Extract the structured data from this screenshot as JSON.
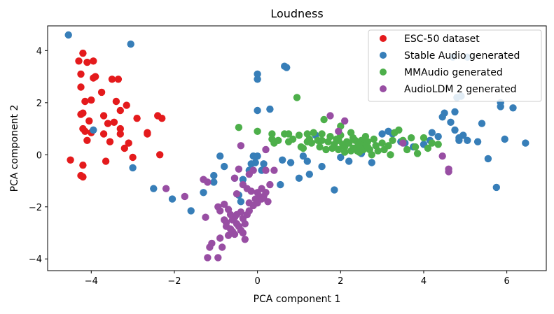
{
  "chart_data": {
    "type": "scatter",
    "title": "Loudness",
    "xlabel": "PCA component 1",
    "ylabel": "PCA component 2",
    "xlim": [
      -5.05,
      6.95
    ],
    "ylim": [
      -4.45,
      4.95
    ],
    "xticks": [
      -4,
      -2,
      0,
      2,
      4,
      6
    ],
    "yticks": [
      -4,
      -2,
      0,
      2,
      4
    ],
    "legend_position": "top-right",
    "grid": false,
    "series": [
      {
        "name": "ESC-50 dataset",
        "color": "#e41a1c",
        "points": [
          [
            -4.5,
            -0.2
          ],
          [
            -4.25,
            -0.8
          ],
          [
            -4.2,
            -0.85
          ],
          [
            -4.2,
            -0.4
          ],
          [
            -4.1,
            0.55
          ],
          [
            -4.15,
            0.9
          ],
          [
            -4.2,
            1.0
          ],
          [
            -4.05,
            1.3
          ],
          [
            -4.0,
            0.85
          ],
          [
            -4.2,
            1.6
          ],
          [
            -4.15,
            2.05
          ],
          [
            -4.25,
            2.6
          ],
          [
            -4.1,
            3.55
          ],
          [
            -4.2,
            3.9
          ],
          [
            -3.95,
            2.95
          ],
          [
            -3.95,
            3.6
          ],
          [
            -3.9,
            3.0
          ],
          [
            -3.75,
            2.4
          ],
          [
            -3.6,
            1.2
          ],
          [
            -3.7,
            0.8
          ],
          [
            -3.55,
            0.5
          ],
          [
            -3.7,
            1.5
          ],
          [
            -3.3,
            1.0
          ],
          [
            -3.5,
            2.9
          ],
          [
            -3.35,
            2.9
          ],
          [
            -3.4,
            2.05
          ],
          [
            -3.3,
            1.7
          ],
          [
            -3.15,
            1.9
          ],
          [
            -3.1,
            0.45
          ],
          [
            -3.3,
            0.8
          ],
          [
            -3.2,
            0.25
          ],
          [
            -2.9,
            1.4
          ],
          [
            -2.65,
            0.8
          ],
          [
            -2.65,
            0.85
          ],
          [
            -2.4,
            1.5
          ],
          [
            -2.3,
            1.4
          ],
          [
            -2.35,
            0.0
          ],
          [
            -3.0,
            -0.1
          ],
          [
            -3.65,
            -0.25
          ],
          [
            -4.3,
            3.6
          ],
          [
            -4.25,
            3.1
          ],
          [
            -4.0,
            2.1
          ],
          [
            -3.45,
            1.25
          ],
          [
            -4.25,
            1.55
          ]
        ]
      },
      {
        "name": "Stable Audio generated",
        "color": "#377eb8",
        "points": [
          [
            -4.55,
            4.6
          ],
          [
            -3.05,
            4.25
          ],
          [
            -3.95,
            0.95
          ],
          [
            -3.0,
            -0.5
          ],
          [
            -2.5,
            -1.3
          ],
          [
            -2.05,
            -1.7
          ],
          [
            -1.6,
            -2.15
          ],
          [
            -1.3,
            -1.45
          ],
          [
            -1.05,
            -1.05
          ],
          [
            -1.05,
            -0.8
          ],
          [
            -0.9,
            -0.05
          ],
          [
            -0.8,
            -0.45
          ],
          [
            -0.55,
            -0.9
          ],
          [
            -0.45,
            -1.55
          ],
          [
            -0.4,
            -1.8
          ],
          [
            -0.35,
            -0.95
          ],
          [
            -0.2,
            -0.6
          ],
          [
            -0.1,
            -0.05
          ],
          [
            -0.05,
            -0.3
          ],
          [
            0.0,
            3.1
          ],
          [
            0.0,
            2.9
          ],
          [
            0.0,
            1.7
          ],
          [
            0.1,
            -0.6
          ],
          [
            0.3,
            1.75
          ],
          [
            0.55,
            -1.15
          ],
          [
            0.65,
            3.4
          ],
          [
            0.7,
            3.35
          ],
          [
            0.6,
            -0.2
          ],
          [
            0.8,
            -0.3
          ],
          [
            1.0,
            -0.9
          ],
          [
            1.1,
            -0.05
          ],
          [
            1.2,
            -0.25
          ],
          [
            1.25,
            -0.75
          ],
          [
            1.4,
            0.75
          ],
          [
            1.55,
            -0.45
          ],
          [
            1.85,
            -1.35
          ],
          [
            2.0,
            -0.1
          ],
          [
            2.2,
            -0.25
          ],
          [
            2.5,
            0.05
          ],
          [
            2.75,
            -0.3
          ],
          [
            2.85,
            0.35
          ],
          [
            3.0,
            0.8
          ],
          [
            3.15,
            0.9
          ],
          [
            3.25,
            0.8
          ],
          [
            3.45,
            0.5
          ],
          [
            3.55,
            0.45
          ],
          [
            3.75,
            0.3
          ],
          [
            4.0,
            0.4
          ],
          [
            4.15,
            0.55
          ],
          [
            4.2,
            0.85
          ],
          [
            4.35,
            0.7
          ],
          [
            4.45,
            1.45
          ],
          [
            4.5,
            1.6
          ],
          [
            4.65,
            1.25
          ],
          [
            4.75,
            0.95
          ],
          [
            4.85,
            0.65
          ],
          [
            4.95,
            0.75
          ],
          [
            4.9,
            2.25
          ],
          [
            4.8,
            2.2
          ],
          [
            4.75,
            1.65
          ],
          [
            5.05,
            0.55
          ],
          [
            4.85,
            0.55
          ],
          [
            5.4,
            1.2
          ],
          [
            5.3,
            0.5
          ],
          [
            5.55,
            -0.15
          ],
          [
            5.75,
            -1.25
          ],
          [
            5.85,
            2.0
          ],
          [
            5.85,
            1.85
          ],
          [
            6.15,
            1.8
          ],
          [
            5.95,
            0.6
          ],
          [
            6.45,
            0.45
          ],
          [
            5.05,
            3.75
          ],
          [
            4.7,
            3.75
          ],
          [
            0.0,
            -0.05
          ],
          [
            -0.15,
            -0.35
          ],
          [
            0.15,
            -0.35
          ]
        ]
      },
      {
        "name": "MMAudio generated",
        "color": "#4daf4a",
        "points": [
          [
            -0.45,
            1.05
          ],
          [
            0.0,
            0.9
          ],
          [
            0.35,
            0.6
          ],
          [
            0.35,
            0.8
          ],
          [
            0.4,
            0.45
          ],
          [
            0.5,
            0.55
          ],
          [
            0.65,
            0.8
          ],
          [
            0.75,
            0.8
          ],
          [
            0.75,
            0.5
          ],
          [
            0.85,
            0.6
          ],
          [
            0.95,
            2.2
          ],
          [
            1.0,
            0.75
          ],
          [
            1.05,
            0.3
          ],
          [
            1.1,
            0.25
          ],
          [
            1.2,
            0.5
          ],
          [
            1.25,
            0.6
          ],
          [
            1.3,
            0.45
          ],
          [
            1.35,
            0.85
          ],
          [
            1.45,
            0.55
          ],
          [
            1.5,
            0.3
          ],
          [
            1.55,
            0.8
          ],
          [
            1.6,
            1.35
          ],
          [
            1.65,
            0.2
          ],
          [
            1.7,
            0.5
          ],
          [
            1.75,
            0.7
          ],
          [
            1.8,
            0.25
          ],
          [
            1.85,
            0.4
          ],
          [
            1.9,
            0.6
          ],
          [
            1.95,
            0.55
          ],
          [
            2.0,
            0.75
          ],
          [
            2.05,
            0.4
          ],
          [
            2.1,
            0.3
          ],
          [
            2.15,
            0.5
          ],
          [
            2.2,
            0.45
          ],
          [
            2.25,
            0.85
          ],
          [
            2.3,
            0.25
          ],
          [
            2.35,
            0.55
          ],
          [
            2.4,
            0.3
          ],
          [
            2.45,
            0.1
          ],
          [
            2.5,
            0.55
          ],
          [
            2.55,
            0.35
          ],
          [
            2.6,
            0.7
          ],
          [
            2.65,
            0.5
          ],
          [
            2.7,
            0.2
          ],
          [
            2.75,
            0.0
          ],
          [
            2.8,
            0.6
          ],
          [
            2.85,
            0.35
          ],
          [
            2.9,
            0.15
          ],
          [
            3.0,
            0.45
          ],
          [
            3.05,
            0.2
          ],
          [
            3.15,
            0.35
          ],
          [
            3.2,
            0.0
          ],
          [
            3.25,
            0.55
          ],
          [
            3.3,
            0.85
          ],
          [
            3.4,
            0.95
          ],
          [
            3.5,
            0.55
          ],
          [
            3.6,
            0.2
          ],
          [
            3.7,
            0.65
          ],
          [
            3.8,
            0.3
          ],
          [
            3.85,
            0.05
          ],
          [
            4.0,
            0.65
          ],
          [
            4.1,
            0.25
          ],
          [
            4.2,
            0.45
          ],
          [
            4.35,
            0.4
          ],
          [
            2.1,
            0.1
          ],
          [
            1.95,
            0.2
          ],
          [
            2.25,
            0.15
          ],
          [
            2.4,
            0.15
          ],
          [
            2.55,
            0.2
          ],
          [
            2.65,
            0.3
          ],
          [
            2.45,
            0.4
          ],
          [
            2.3,
            0.65
          ],
          [
            1.2,
            0.8
          ],
          [
            1.55,
            0.55
          ],
          [
            2.0,
            1.1
          ]
        ]
      },
      {
        "name": "AudioLDM 2 generated",
        "color": "#984ea3",
        "points": [
          [
            -2.2,
            -1.3
          ],
          [
            -1.75,
            -1.6
          ],
          [
            -1.25,
            -2.4
          ],
          [
            -1.2,
            -3.95
          ],
          [
            -1.15,
            -3.55
          ],
          [
            -1.1,
            -3.4
          ],
          [
            -0.95,
            -3.95
          ],
          [
            -0.9,
            -3.2
          ],
          [
            -0.85,
            -3.55
          ],
          [
            -0.9,
            -2.15
          ],
          [
            -0.95,
            -2.0
          ],
          [
            -0.8,
            -1.9
          ],
          [
            -0.8,
            -2.5
          ],
          [
            -0.75,
            -2.6
          ],
          [
            -0.7,
            -3.1
          ],
          [
            -0.65,
            -2.85
          ],
          [
            -0.6,
            -2.95
          ],
          [
            -0.55,
            -3.05
          ],
          [
            -0.5,
            -2.65
          ],
          [
            -0.45,
            -2.75
          ],
          [
            -0.4,
            -2.2
          ],
          [
            -0.35,
            -2.45
          ],
          [
            -0.3,
            -2.65
          ],
          [
            -0.25,
            -2.3
          ],
          [
            -0.2,
            -2.15
          ],
          [
            -0.3,
            -3.25
          ],
          [
            -0.55,
            -2.4
          ],
          [
            -0.65,
            -2.3
          ],
          [
            -0.75,
            -2.75
          ],
          [
            -0.6,
            -2.5
          ],
          [
            -0.5,
            -2.3
          ],
          [
            -0.4,
            -2.9
          ],
          [
            -0.2,
            -1.85
          ],
          [
            -0.15,
            -1.4
          ],
          [
            -0.1,
            -1.95
          ],
          [
            -0.05,
            -1.7
          ],
          [
            0.0,
            -1.45
          ],
          [
            0.05,
            -1.6
          ],
          [
            0.1,
            -1.3
          ],
          [
            0.15,
            -1.6
          ],
          [
            0.2,
            -1.45
          ],
          [
            0.25,
            -1.8
          ],
          [
            0.3,
            -1.15
          ],
          [
            0.4,
            -0.6
          ],
          [
            0.2,
            -0.6
          ],
          [
            -0.1,
            -0.6
          ],
          [
            -0.2,
            -0.75
          ],
          [
            -0.45,
            -0.55
          ],
          [
            -0.55,
            -0.9
          ],
          [
            -0.35,
            -1.15
          ],
          [
            -1.2,
            -1.05
          ],
          [
            -1.3,
            -0.95
          ],
          [
            0.2,
            0.2
          ],
          [
            -0.4,
            0.35
          ],
          [
            -0.5,
            -1.5
          ],
          [
            1.75,
            1.5
          ],
          [
            1.95,
            0.9
          ],
          [
            2.1,
            1.3
          ],
          [
            3.5,
            0.45
          ],
          [
            4.45,
            -0.05
          ],
          [
            4.6,
            -0.55
          ],
          [
            4.6,
            -0.65
          ],
          [
            -0.25,
            -1.3
          ],
          [
            0.0,
            -1.85
          ],
          [
            -0.7,
            -2.1
          ],
          [
            -0.35,
            -3.0
          ],
          [
            0.1,
            -1.7
          ]
        ]
      }
    ]
  }
}
